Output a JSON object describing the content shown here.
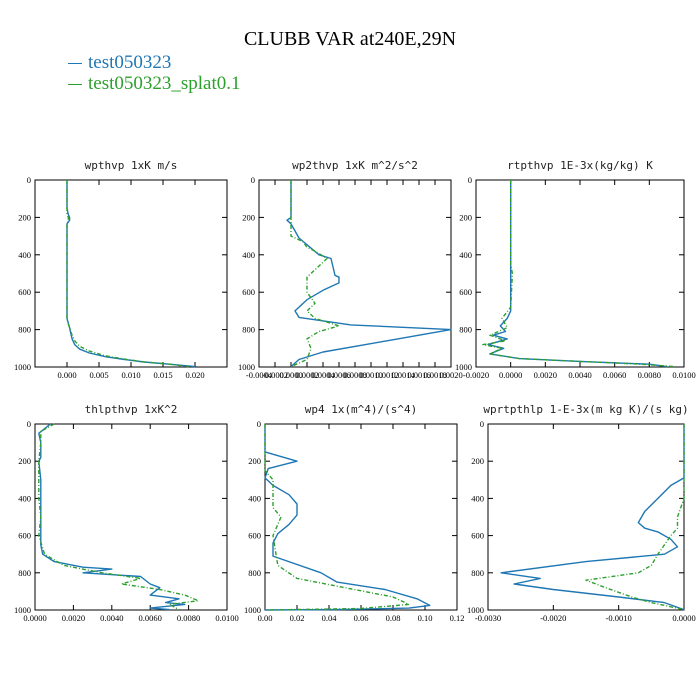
{
  "figure": {
    "title": "CLUBB VAR at240E,29N",
    "legend": [
      {
        "name": "test050323",
        "color": "#1f77b4"
      },
      {
        "name": "test050323_splat0.1",
        "color": "#2ca02c"
      }
    ]
  },
  "chart_data": [
    {
      "type": "line",
      "title": "wpthvp  1xK m/s",
      "xlim": [
        -0.005,
        0.025
      ],
      "xticks": [
        0.0,
        0.005,
        0.01,
        0.015,
        0.02
      ],
      "xtick_labels": [
        "0.000",
        "0.005",
        "0.010",
        "0.015",
        "0.020"
      ],
      "ylim": [
        1000,
        0
      ],
      "yticks": [
        0,
        200,
        400,
        600,
        800,
        1000
      ],
      "ytick_labels": [
        "0",
        "200",
        "400",
        "600",
        "800",
        "1000"
      ],
      "series": [
        {
          "name": "test050323",
          "color": "#1f77b4",
          "dash": "",
          "x": [
            0,
            0,
            0.0002,
            0.0004,
            0.0004,
            0,
            0,
            0,
            0,
            0.0002,
            0.0004,
            0.0006,
            0.0008,
            0.0012,
            0.002,
            0.0035,
            0.006,
            0.009,
            0.012,
            0.016,
            0.02
          ],
          "y": [
            0,
            150,
            185,
            200,
            215,
            235,
            400,
            600,
            740,
            765,
            790,
            820,
            850,
            880,
            905,
            925,
            945,
            960,
            973,
            985,
            998
          ]
        },
        {
          "name": "test050323_splat0.1",
          "color": "#2ca02c",
          "dash": "4,2,1,2",
          "x": [
            0,
            0,
            0.0002,
            0.0002,
            0,
            0,
            0,
            0,
            0.0002,
            0.0005,
            0.0008,
            0.0012,
            0.002,
            0.0035,
            0.006,
            0.009,
            0.012,
            0.016,
            0.019
          ],
          "y": [
            0,
            180,
            200,
            215,
            235,
            400,
            600,
            745,
            770,
            800,
            830,
            860,
            890,
            915,
            940,
            958,
            972,
            985,
            998
          ]
        }
      ]
    },
    {
      "type": "line",
      "title": "wp2thvp  1xK m^2/s^2",
      "xlim": [
        -0.0004,
        0.002
      ],
      "xticks": [
        -0.0004,
        -0.0002,
        0.0,
        0.0002,
        0.0004,
        0.0006,
        0.0008,
        0.001,
        0.0012,
        0.0014,
        0.0016,
        0.0018,
        0.002
      ],
      "xtick_labels": [
        "-0.0004",
        "-0.0002",
        "0.0000",
        "0.0002",
        "0.0004",
        "0.0006",
        "0.0008",
        "0.0010",
        "0.0012",
        "0.0014",
        "0.0016",
        "0.0018",
        "0.0020"
      ],
      "ylim": [
        1000,
        0
      ],
      "yticks": [
        0,
        200,
        400,
        600,
        800,
        1000
      ],
      "ytick_labels": [
        "0",
        "200",
        "400",
        "600",
        "800",
        "1000"
      ],
      "series": [
        {
          "name": "test050323",
          "color": "#1f77b4",
          "dash": "",
          "x": [
            0,
            0,
            -5e-05,
            0,
            0.0001,
            0.00035,
            0.0005,
            0.00055,
            0.0006,
            0.0006,
            0.0004,
            0.0002,
            5e-05,
            0.0001,
            0.00075,
            0.002,
            0.0012,
            0.0004,
            0.0001,
            0
          ],
          "y": [
            0,
            200,
            215,
            235,
            310,
            400,
            420,
            510,
            520,
            550,
            590,
            640,
            700,
            735,
            775,
            800,
            860,
            920,
            960,
            998
          ]
        },
        {
          "name": "test050323_splat0.1",
          "color": "#2ca02c",
          "dash": "4,2,1,2",
          "x": [
            0,
            0,
            0,
            0.00015,
            0.0002,
            0.0003,
            0.00045,
            0.00035,
            0.0002,
            0.0002,
            0.0003,
            0.0002,
            0.0003,
            0.00045,
            0.0006,
            0.00035,
            0.0002,
            0.00025,
            0.0002,
            0
          ],
          "y": [
            0,
            200,
            300,
            330,
            360,
            380,
            420,
            460,
            520,
            600,
            660,
            700,
            740,
            760,
            780,
            810,
            850,
            900,
            960,
            998
          ]
        }
      ]
    },
    {
      "type": "line",
      "title": "rtpthvp  1E-3x(kg/kg) K",
      "xlim": [
        -0.002,
        0.01
      ],
      "xticks": [
        -0.002,
        0.0,
        0.002,
        0.004,
        0.006,
        0.008,
        0.01
      ],
      "xtick_labels": [
        "-0.0020",
        "0.0000",
        "0.0020",
        "0.0040",
        "0.0060",
        "0.0080",
        "0.0100"
      ],
      "ylim": [
        1000,
        0
      ],
      "yticks": [
        0,
        200,
        400,
        600,
        800,
        1000
      ],
      "ytick_labels": [
        "0",
        "200",
        "400",
        "600",
        "800",
        "1000"
      ],
      "series": [
        {
          "name": "test050323",
          "color": "#1f77b4",
          "dash": "",
          "x": [
            0,
            0,
            0,
            0,
            -0.0002,
            -0.0006,
            -0.0003,
            -0.001,
            -0.0002,
            -0.0013,
            -0.0004,
            -0.0012,
            0.0005,
            0.004,
            0.008,
            0.009
          ],
          "y": [
            0,
            500,
            650,
            700,
            740,
            780,
            810,
            830,
            850,
            880,
            900,
            930,
            955,
            970,
            985,
            998
          ]
        },
        {
          "name": "test050323_splat0.1",
          "color": "#2ca02c",
          "dash": "4,2,1,2",
          "x": [
            0,
            0,
            0.0001,
            0,
            -0.0005,
            -0.0002,
            -0.0012,
            -0.0003,
            -0.0016,
            -0.0005,
            -0.0012,
            0.0005,
            0.004,
            0.0075,
            0.0095
          ],
          "y": [
            0,
            450,
            500,
            680,
            740,
            790,
            830,
            860,
            880,
            900,
            930,
            955,
            970,
            985,
            998
          ]
        }
      ]
    },
    {
      "type": "line",
      "title": "thlpthvp  1xK^2",
      "xlim": [
        0.0,
        0.01
      ],
      "xticks": [
        0.0,
        0.002,
        0.004,
        0.006,
        0.008,
        0.01
      ],
      "xtick_labels": [
        "0.0000",
        "0.0020",
        "0.0040",
        "0.0060",
        "0.0080",
        "0.0100"
      ],
      "ylim": [
        1000,
        0
      ],
      "yticks": [
        0,
        200,
        400,
        600,
        800,
        1000
      ],
      "ytick_labels": [
        "0",
        "200",
        "400",
        "600",
        "800",
        "1000"
      ],
      "series": [
        {
          "name": "test050323",
          "color": "#1f77b4",
          "dash": "",
          "x": [
            0.0008,
            0.0002,
            0.0003,
            0.0003,
            0.0002,
            0.0003,
            0.0003,
            0.0003,
            0.0004,
            0.001,
            0.0025,
            0.004,
            0.0025,
            0.0055,
            0.006,
            0.0065,
            0.006,
            0.0075,
            0.0068,
            0.0078,
            0.006,
            0.007
          ],
          "y": [
            0,
            50,
            100,
            180,
            200,
            300,
            500,
            650,
            700,
            740,
            770,
            780,
            800,
            820,
            860,
            880,
            920,
            940,
            960,
            970,
            990,
            998
          ]
        },
        {
          "name": "test050323_splat0.1",
          "color": "#2ca02c",
          "dash": "4,2,1,2",
          "x": [
            0.001,
            0.0003,
            0.0003,
            0.0002,
            0.0002,
            0.0003,
            0.0002,
            0.0005,
            0.0015,
            0.0035,
            0.0055,
            0.0045,
            0.0065,
            0.0078,
            0.0085,
            0.007,
            0.0075
          ],
          "y": [
            0,
            40,
            100,
            200,
            400,
            500,
            600,
            700,
            760,
            800,
            830,
            860,
            890,
            920,
            950,
            970,
            998
          ]
        }
      ]
    },
    {
      "type": "line",
      "title": "wp4  1x(m^4)/(s^4)",
      "xlim": [
        0.0,
        0.12
      ],
      "xticks": [
        0.0,
        0.02,
        0.04,
        0.06,
        0.08,
        0.1,
        0.12
      ],
      "xtick_labels": [
        "0.00",
        "0.02",
        "0.04",
        "0.06",
        "0.08",
        "0.10",
        "0.12"
      ],
      "ylim": [
        1000,
        0
      ],
      "yticks": [
        0,
        200,
        400,
        600,
        800,
        1000
      ],
      "ytick_labels": [
        "0",
        "200",
        "400",
        "600",
        "800",
        "1000"
      ],
      "series": [
        {
          "name": "test050323",
          "color": "#1f77b4",
          "dash": "",
          "x": [
            0,
            0,
            0.02,
            0.002,
            0,
            0.005,
            0.015,
            0.02,
            0.02,
            0.015,
            0.008,
            0.005,
            0.005,
            0.035,
            0.045,
            0.075,
            0.095,
            0.103,
            0.09,
            0.045,
            0
          ],
          "y": [
            0,
            150,
            200,
            240,
            290,
            330,
            380,
            430,
            490,
            540,
            590,
            640,
            710,
            800,
            850,
            890,
            940,
            975,
            990,
            998,
            1000
          ]
        },
        {
          "name": "test050323_splat0.1",
          "color": "#2ca02c",
          "dash": "4,2,1,2",
          "x": [
            0,
            0,
            0.005,
            0.005,
            0.01,
            0.005,
            0.008,
            0.02,
            0.05,
            0.08,
            0.09,
            0.06,
            0
          ],
          "y": [
            0,
            250,
            300,
            450,
            500,
            600,
            760,
            830,
            880,
            930,
            970,
            992,
            1000
          ]
        }
      ]
    },
    {
      "type": "line",
      "title": "wprtpthlp  1-E-3x(m kg K)/(s kg)",
      "xlim": [
        -0.003,
        0.0
      ],
      "xticks": [
        -0.003,
        -0.002,
        -0.001,
        0.0
      ],
      "xtick_labels": [
        "-0.0030",
        "-0.0020",
        "-0.0010",
        "0.0000"
      ],
      "ylim": [
        1000,
        0
      ],
      "yticks": [
        0,
        200,
        400,
        600,
        800,
        1000
      ],
      "ytick_labels": [
        "0",
        "200",
        "400",
        "600",
        "800",
        "1000"
      ],
      "series": [
        {
          "name": "test050323",
          "color": "#1f77b4",
          "dash": "",
          "x": [
            0,
            0,
            -0.0002,
            -0.0004,
            -0.0006,
            -0.0007,
            -0.0006,
            -0.0004,
            -0.0002,
            -0.0001,
            -0.0003,
            -0.0015,
            -0.0028,
            -0.0022,
            -0.0026,
            -0.002,
            -0.001,
            -0.0003,
            0
          ],
          "y": [
            0,
            290,
            330,
            400,
            470,
            530,
            560,
            580,
            620,
            660,
            700,
            740,
            800,
            830,
            860,
            890,
            930,
            960,
            998
          ]
        },
        {
          "name": "test050323_splat0.1",
          "color": "#2ca02c",
          "dash": "4,2,1,2",
          "x": [
            0,
            0,
            -0.0001,
            -0.0001,
            -0.0002,
            -0.0003,
            -0.0004,
            -0.0005,
            -0.0007,
            -0.0015,
            -0.0012,
            -0.0008,
            -0.0005,
            0
          ],
          "y": [
            0,
            400,
            500,
            560,
            600,
            650,
            700,
            760,
            800,
            840,
            880,
            930,
            960,
            998
          ]
        }
      ]
    }
  ]
}
